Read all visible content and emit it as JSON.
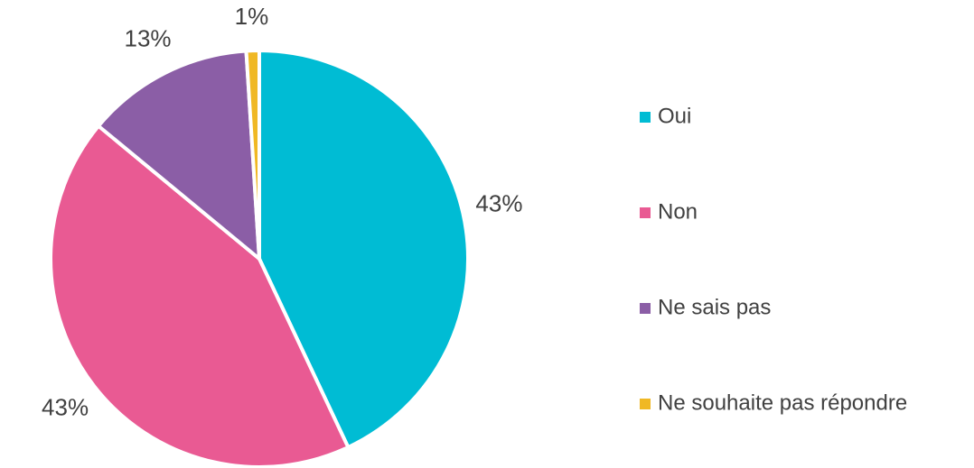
{
  "chart_data": {
    "type": "pie",
    "categories": [
      "Oui",
      "Non",
      "Ne sais pas",
      "Ne souhaite pas répondre"
    ],
    "values": [
      43,
      43,
      13,
      1
    ],
    "value_labels": [
      "43%",
      "43%",
      "13%",
      "1%"
    ],
    "colors": [
      "#00bcd4",
      "#e95a93",
      "#8b5ea6",
      "#f0b824"
    ],
    "legend": "right"
  }
}
